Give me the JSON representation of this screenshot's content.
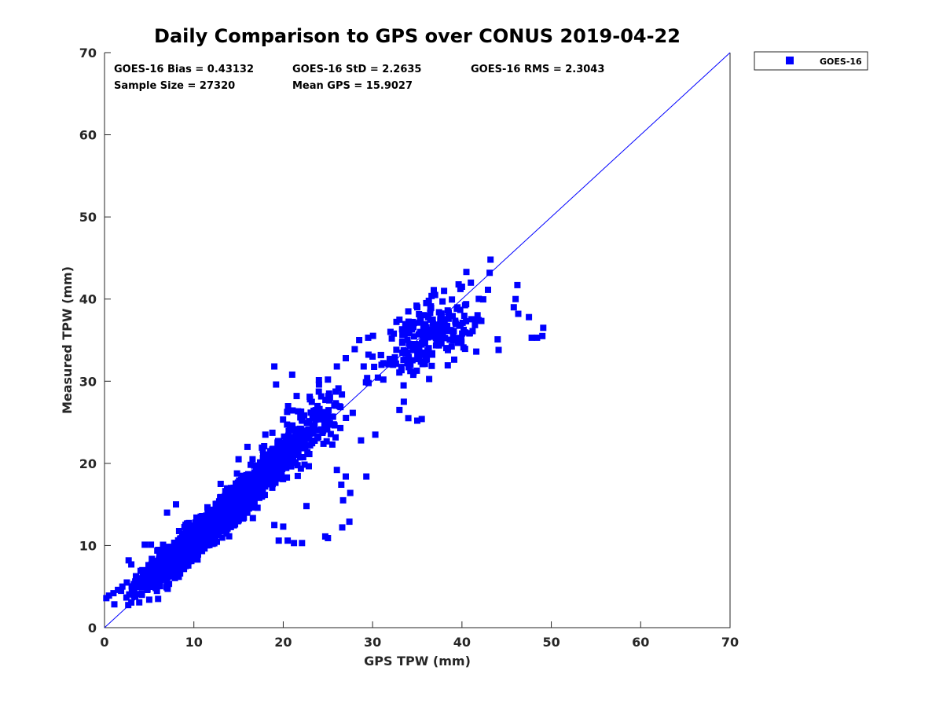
{
  "chart_data": {
    "type": "scatter",
    "title": "Daily Comparison to GPS over CONUS 2019-04-22",
    "xlabel": "GPS TPW (mm)",
    "ylabel": "Measured TPW (mm)",
    "xlim": [
      0,
      70
    ],
    "ylim": [
      0,
      70
    ],
    "xticks": [
      "0",
      "10",
      "20",
      "30",
      "40",
      "50",
      "60",
      "70"
    ],
    "yticks": [
      "0",
      "10",
      "20",
      "30",
      "40",
      "50",
      "60",
      "70"
    ],
    "reference_line": "1:1",
    "legend": {
      "entries": [
        "GOES-16"
      ],
      "placement": "outside-top-right"
    },
    "stats": {
      "bias": "GOES-16 Bias = 0.43132",
      "std": "GOES-16 StD = 2.2635",
      "rms": "GOES-16 RMS = 2.3043",
      "sample_size": "Sample Size = 27320",
      "mean_gps": "Mean GPS = 15.9027"
    },
    "series": [
      {
        "name": "GOES-16",
        "color": "#0000ff",
        "marker": "square",
        "clusters": [
          {
            "cx": 8,
            "cy": 8.5,
            "sx": 1.6,
            "sy": 1.6,
            "n": 650,
            "rho": 0.8
          },
          {
            "cx": 12,
            "cy": 12.5,
            "sx": 2.0,
            "sy": 2.0,
            "n": 650,
            "rho": 0.85
          },
          {
            "cx": 16,
            "cy": 16.5,
            "sx": 2.0,
            "sy": 2.2,
            "n": 450,
            "rho": 0.85
          },
          {
            "cx": 20,
            "cy": 21,
            "sx": 2.0,
            "sy": 2.2,
            "n": 220,
            "rho": 0.8
          },
          {
            "cx": 24,
            "cy": 25,
            "sx": 2.0,
            "sy": 2.6,
            "n": 100,
            "rho": 0.6
          },
          {
            "cx": 35.5,
            "cy": 35,
            "sx": 2.2,
            "sy": 2.3,
            "n": 160,
            "rho": 0.45
          },
          {
            "cx": 39,
            "cy": 37,
            "sx": 2.2,
            "sy": 1.6,
            "n": 70,
            "rho": 0.3
          },
          {
            "cx": 4.5,
            "cy": 5.5,
            "sx": 1.0,
            "sy": 1.1,
            "n": 60,
            "rho": 0.7
          }
        ],
        "points": [
          [
            0.2,
            3.6
          ],
          [
            0.5,
            3.9
          ],
          [
            1.0,
            4.2
          ],
          [
            1.5,
            4.6
          ],
          [
            2.0,
            5.0
          ],
          [
            2.5,
            5.5
          ],
          [
            2.7,
            8.2
          ],
          [
            3.0,
            7.7
          ],
          [
            5.0,
            3.4
          ],
          [
            6.0,
            3.5
          ],
          [
            4.5,
            10.1
          ],
          [
            5.2,
            10.1
          ],
          [
            7.0,
            14.0
          ],
          [
            8.0,
            15.0
          ],
          [
            13,
            17.5
          ],
          [
            15,
            20.5
          ],
          [
            16,
            22
          ],
          [
            18,
            23.5
          ],
          [
            19,
            31.8
          ],
          [
            19.2,
            29.6
          ],
          [
            21,
            30.8
          ],
          [
            21.5,
            28.2
          ],
          [
            22,
            26.3
          ],
          [
            23,
            27.8
          ],
          [
            24,
            29.6
          ],
          [
            25,
            30.2
          ],
          [
            26,
            31.8
          ],
          [
            27,
            32.8
          ],
          [
            28,
            33.9
          ],
          [
            28.5,
            35.0
          ],
          [
            29.5,
            35.3
          ],
          [
            30,
            33.0
          ],
          [
            29,
            31.8
          ],
          [
            31,
            32.0
          ],
          [
            32,
            36.0
          ],
          [
            33,
            37.5
          ],
          [
            34,
            38.5
          ],
          [
            35,
            39.0
          ],
          [
            36,
            39.5
          ],
          [
            37,
            40.5
          ],
          [
            38,
            41.0
          ],
          [
            40,
            41.5
          ],
          [
            41,
            42.0
          ],
          [
            43.2,
            44.8
          ],
          [
            43.1,
            43.2
          ],
          [
            40.5,
            43.3
          ],
          [
            46.2,
            41.7
          ],
          [
            46,
            40.0
          ],
          [
            45.8,
            39.0
          ],
          [
            46.3,
            38.2
          ],
          [
            47.5,
            37.8
          ],
          [
            47.8,
            35.3
          ],
          [
            48.4,
            35.3
          ],
          [
            49,
            35.5
          ],
          [
            49.1,
            36.5
          ],
          [
            44,
            35.1
          ],
          [
            44.1,
            33.8
          ],
          [
            41.6,
            33.6
          ],
          [
            33,
            26.5
          ],
          [
            34,
            25.5
          ],
          [
            35,
            25.2
          ],
          [
            35.5,
            25.4
          ],
          [
            33.5,
            27.5
          ],
          [
            26,
            19.2
          ],
          [
            27,
            18.4
          ],
          [
            27.5,
            16.4
          ],
          [
            26.5,
            17.4
          ],
          [
            26.7,
            15.5
          ],
          [
            27.4,
            12.9
          ],
          [
            26.6,
            12.2
          ],
          [
            28.7,
            22.8
          ],
          [
            29.3,
            18.4
          ],
          [
            24.7,
            11.1
          ],
          [
            25.0,
            10.9
          ],
          [
            22.1,
            10.3
          ],
          [
            21.2,
            10.3
          ],
          [
            20.5,
            10.6
          ],
          [
            19.5,
            10.6
          ],
          [
            19.0,
            12.5
          ],
          [
            20.0,
            12.3
          ],
          [
            22.6,
            14.8
          ],
          [
            30.3,
            23.5
          ],
          [
            31.2,
            30.2
          ],
          [
            32.3,
            32.0
          ]
        ]
      }
    ]
  }
}
